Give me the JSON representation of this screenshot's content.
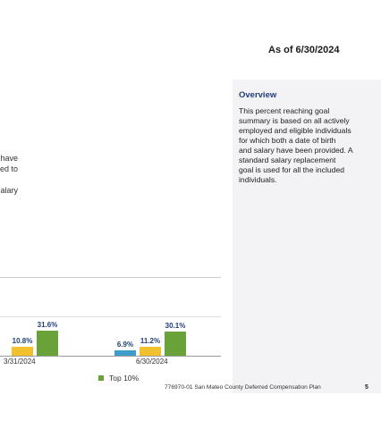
{
  "header": {
    "as_of": "As of 6/30/2024"
  },
  "body_fragments": [
    "have",
    "ed to",
    "alary"
  ],
  "overview": {
    "title": "Overview",
    "lines": [
      "This percent reaching goal",
      "summary is based on all actively",
      "employed and eligible individuals",
      "for which both a date of birth",
      "and salary have been provided. A",
      "standard salary replacement",
      "goal is used for all the included",
      "individuals."
    ]
  },
  "chart_data": {
    "type": "bar",
    "categories": [
      "3/31/2024",
      "6/30/2024"
    ],
    "series": [
      {
        "values": [
          null,
          6.9
        ],
        "color": "#3d9cc8"
      },
      {
        "values": [
          10.8,
          11.2
        ],
        "color": "#f2c12e"
      },
      {
        "name": "Top 10%",
        "values": [
          31.6,
          30.1
        ],
        "color": "#6aa23a"
      }
    ],
    "data_labels": [
      {
        "cat": 0,
        "labels": [
          "%",
          "10.8%",
          "31.6%"
        ]
      },
      {
        "cat": 1,
        "labels": [
          "6.9%",
          "11.2%",
          "30.1%"
        ]
      }
    ],
    "ylim": [
      0,
      45
    ],
    "legend": {
      "position": "bottom",
      "entries": [
        "Top 10%"
      ]
    }
  },
  "footer": {
    "text": "776970-01 San Mateo County Deferred Compensation Plan",
    "page": "5"
  }
}
